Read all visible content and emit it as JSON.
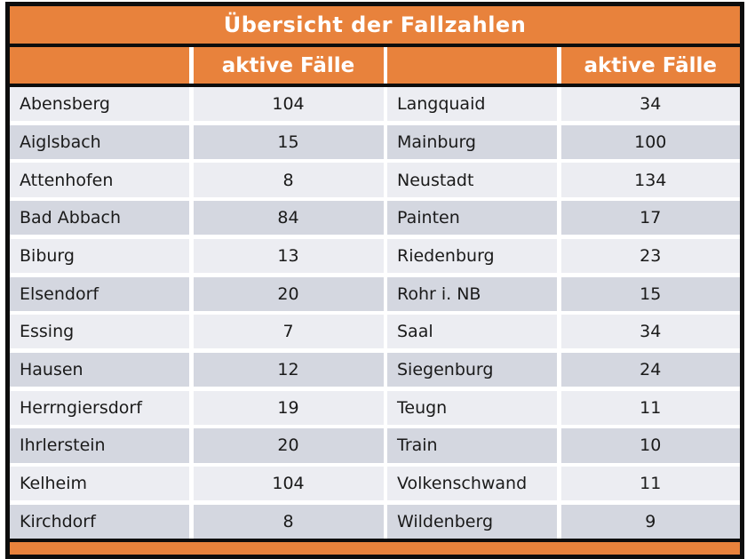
{
  "title": "Übersicht der Fallzahlen",
  "header": {
    "cases_label": "aktive Fälle"
  },
  "rows": [
    {
      "l_name": "Abensberg",
      "l_cases": "104",
      "r_name": "Langquaid",
      "r_cases": "34"
    },
    {
      "l_name": "Aiglsbach",
      "l_cases": "15",
      "r_name": "Mainburg",
      "r_cases": "100"
    },
    {
      "l_name": "Attenhofen",
      "l_cases": "8",
      "r_name": "Neustadt",
      "r_cases": "134"
    },
    {
      "l_name": "Bad Abbach",
      "l_cases": "84",
      "r_name": "Painten",
      "r_cases": "17"
    },
    {
      "l_name": "Biburg",
      "l_cases": "13",
      "r_name": "Riedenburg",
      "r_cases": "23"
    },
    {
      "l_name": "Elsendorf",
      "l_cases": "20",
      "r_name": "Rohr i. NB",
      "r_cases": "15"
    },
    {
      "l_name": "Essing",
      "l_cases": "7",
      "r_name": "Saal",
      "r_cases": "34"
    },
    {
      "l_name": "Hausen",
      "l_cases": "12",
      "r_name": "Siegenburg",
      "r_cases": "24"
    },
    {
      "l_name": "Herrngiersdorf",
      "l_cases": "19",
      "r_name": "Teugn",
      "r_cases": "11"
    },
    {
      "l_name": "Ihrlerstein",
      "l_cases": "20",
      "r_name": "Train",
      "r_cases": "10"
    },
    {
      "l_name": "Kelheim",
      "l_cases": "104",
      "r_name": "Volkenschwand",
      "r_cases": "11"
    },
    {
      "l_name": "Kirchdorf",
      "l_cases": "8",
      "r_name": "Wildenberg",
      "r_cases": "9"
    }
  ],
  "colors": {
    "orange": "#E8823C",
    "frame": "#0d0d0d",
    "row_light": "#ECEDF2",
    "row_dark": "#D4D7E0",
    "text_dark": "#1a1a1a",
    "header_text": "#ffffff"
  },
  "chart_data": {
    "type": "table",
    "title": "Übersicht der Fallzahlen",
    "value_column_label": "aktive Fälle",
    "entries": [
      [
        "Abensberg",
        104
      ],
      [
        "Aiglsbach",
        15
      ],
      [
        "Attenhofen",
        8
      ],
      [
        "Bad Abbach",
        84
      ],
      [
        "Biburg",
        13
      ],
      [
        "Elsendorf",
        20
      ],
      [
        "Essing",
        7
      ],
      [
        "Hausen",
        12
      ],
      [
        "Herrngiersdorf",
        19
      ],
      [
        "Ihrlerstein",
        20
      ],
      [
        "Kelheim",
        104
      ],
      [
        "Kirchdorf",
        8
      ],
      [
        "Langquaid",
        34
      ],
      [
        "Mainburg",
        100
      ],
      [
        "Neustadt",
        134
      ],
      [
        "Painten",
        17
      ],
      [
        "Riedenburg",
        23
      ],
      [
        "Rohr i. NB",
        15
      ],
      [
        "Saal",
        34
      ],
      [
        "Siegenburg",
        24
      ],
      [
        "Teugn",
        11
      ],
      [
        "Train",
        10
      ],
      [
        "Volkenschwand",
        11
      ],
      [
        "Wildenberg",
        9
      ]
    ]
  }
}
